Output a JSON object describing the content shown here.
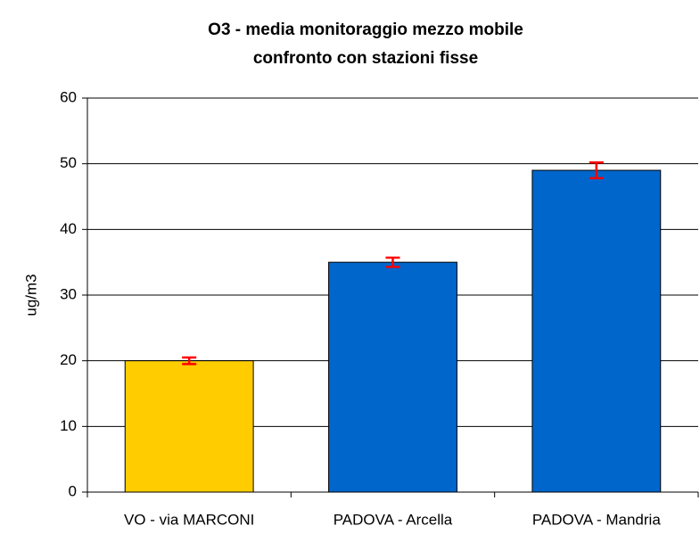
{
  "chart_data": {
    "type": "bar",
    "title": "O3 - media monitoraggio mezzo mobile",
    "subtitle": "confronto con stazioni fisse",
    "y_label": "ug/m3",
    "categories": [
      "VO - via MARCONI",
      "PADOVA - Arcella",
      "PADOVA - Mandria"
    ],
    "values": [
      20,
      35,
      49
    ],
    "errors": [
      0.5,
      0.7,
      1.2
    ],
    "colors": [
      "#ffcc00",
      "#0066cc",
      "#0066cc"
    ],
    "error_color": "#ff0000",
    "ylim": [
      0,
      60
    ],
    "yticks": [
      0,
      10,
      20,
      30,
      40,
      50,
      60
    ],
    "grid": true
  }
}
